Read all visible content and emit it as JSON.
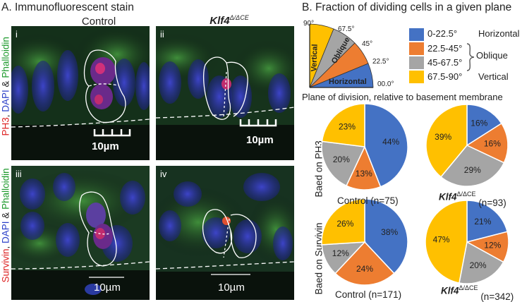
{
  "section_a": {
    "title": "A. Immunofluorescent stain",
    "col_control": "Control",
    "col_klf4": "Klf4",
    "col_klf4_sup": "Δ/ΔCE",
    "row1_label": {
      "red": "PH3",
      "blue": "DAPI",
      "amp": "&",
      "green": "Phalloidin"
    },
    "row2_label": {
      "red": "Survivin",
      "blue": "DAPI",
      "amp": "&",
      "green": "Phalloidin"
    },
    "panels": [
      {
        "id": "i",
        "scale": "10µm"
      },
      {
        "id": "ii",
        "scale": "10µm"
      },
      {
        "id": "iii",
        "scale": "10µm"
      },
      {
        "id": "iv",
        "scale": "10µm"
      }
    ]
  },
  "section_b": {
    "title": "B. Fraction of dividing cells in a given plane",
    "diagram": {
      "angles": [
        "90°",
        "67.5°",
        "45°",
        "22.5°",
        "00.0°"
      ],
      "sectors": [
        "Vertical",
        "Oblique",
        "Horizontal"
      ],
      "caption": "Plane of division, relative to basement membrane"
    },
    "legend": [
      {
        "range": "0-22.5°",
        "label": "Horizontal",
        "color": "#4472C4"
      },
      {
        "range": "22.5-45°",
        "label": "",
        "color": "#ED7D31"
      },
      {
        "range": "45-67.5°",
        "label": "",
        "color": "#A5A5A5"
      },
      {
        "range": "67.5-90°",
        "label": "Vertical",
        "color": "#FFC000"
      }
    ],
    "legend_group_label": "Oblique",
    "row_labels": [
      "Baed on PH3",
      "Baed on Survivin"
    ]
  },
  "chart_data": [
    {
      "type": "pie",
      "label": "Control (n=75)",
      "row": "Baed on PH3",
      "slices": [
        {
          "name": "0-22.5°",
          "value": 44
        },
        {
          "name": "22.5-45°",
          "value": 13
        },
        {
          "name": "45-67.5°",
          "value": 20
        },
        {
          "name": "67.5-90°",
          "value": 23
        }
      ]
    },
    {
      "type": "pie",
      "label_main": "Klf4",
      "label_sup": "Δ/ΔCE",
      "label_n": "(n=93)",
      "row": "Baed on PH3",
      "slices": [
        {
          "name": "0-22.5°",
          "value": 16
        },
        {
          "name": "22.5-45°",
          "value": 16
        },
        {
          "name": "45-67.5°",
          "value": 29
        },
        {
          "name": "67.5-90°",
          "value": 39
        }
      ]
    },
    {
      "type": "pie",
      "label": "Control (n=171)",
      "row": "Baed on Survivin",
      "slices": [
        {
          "name": "0-22.5°",
          "value": 38
        },
        {
          "name": "22.5-45°",
          "value": 24
        },
        {
          "name": "45-67.5°",
          "value": 12
        },
        {
          "name": "67.5-90°",
          "value": 26
        }
      ]
    },
    {
      "type": "pie",
      "label_main": "Klf4",
      "label_sup": "Δ/ΔCE",
      "label_n": "(n=342)",
      "row": "Baed on Survivin",
      "slices": [
        {
          "name": "0-22.5°",
          "value": 21
        },
        {
          "name": "22.5-45°",
          "value": 12
        },
        {
          "name": "45-67.5°",
          "value": 20
        },
        {
          "name": "67.5-90°",
          "value": 47
        }
      ]
    }
  ]
}
